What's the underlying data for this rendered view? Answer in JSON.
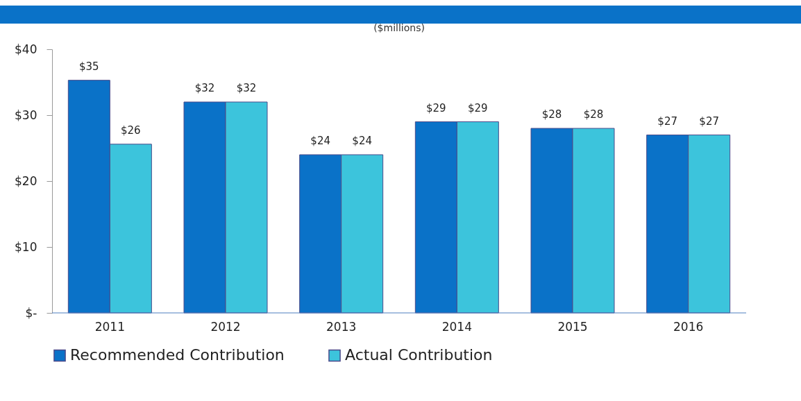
{
  "chart_data": {
    "type": "bar",
    "subtitle": "($millions)",
    "categories": [
      "2011",
      "2012",
      "2013",
      "2014",
      "2015",
      "2016"
    ],
    "series": [
      {
        "name": "Recommended Contribution",
        "color": "#0a72c8",
        "values": [
          35.3,
          32,
          24,
          29,
          28,
          27
        ],
        "value_labels": [
          "$35",
          "$32",
          "$24",
          "$29",
          "$28",
          "$27"
        ]
      },
      {
        "name": "Actual Contribution",
        "color": "#3cc4dc",
        "values": [
          25.6,
          32,
          24,
          29,
          28,
          27
        ],
        "value_labels": [
          "$26",
          "$32",
          "$24",
          "$29",
          "$28",
          "$27"
        ]
      }
    ],
    "ylim": [
      0,
      40
    ],
    "yticks": [
      {
        "value": 0,
        "label": "$-"
      },
      {
        "value": 10,
        "label": "$10"
      },
      {
        "value": 20,
        "label": "$20"
      },
      {
        "value": 30,
        "label": "$30"
      },
      {
        "value": 40,
        "label": "$40"
      }
    ],
    "grid": false,
    "legend": "bottom"
  }
}
